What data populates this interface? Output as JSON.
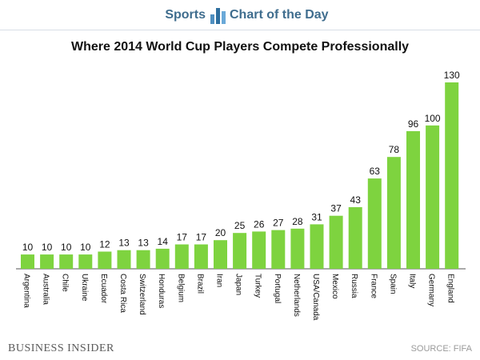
{
  "header": {
    "left_label": "Sports",
    "right_label": "Chart of the Day",
    "logo_icon": "bar-chart-icon",
    "accent_color": "#3f6d8e"
  },
  "footer": {
    "brand": "Business Insider",
    "source": "SOURCE: FIFA"
  },
  "chart_data": {
    "type": "bar",
    "title": "Where 2014 World Cup Players Compete Professionally",
    "xlabel": "",
    "ylabel": "",
    "categories": [
      "Argentina",
      "Australia",
      "Chile",
      "Ukraine",
      "Ecuador",
      "Costa Rica",
      "Switzerland",
      "Honduras",
      "Belgium",
      "Brazil",
      "Iran",
      "Japan",
      "Turkey",
      "Portugal",
      "Netherlands",
      "USA/Canada",
      "Mexico",
      "Russia",
      "France",
      "Spain",
      "Italy",
      "Germany",
      "England"
    ],
    "values": [
      10,
      10,
      10,
      10,
      12,
      13,
      13,
      14,
      17,
      17,
      20,
      25,
      26,
      27,
      28,
      31,
      37,
      43,
      63,
      78,
      96,
      100,
      130
    ],
    "ylim": [
      0,
      130
    ],
    "bar_color": "#7ed33f",
    "grid": false,
    "legend": "none"
  }
}
